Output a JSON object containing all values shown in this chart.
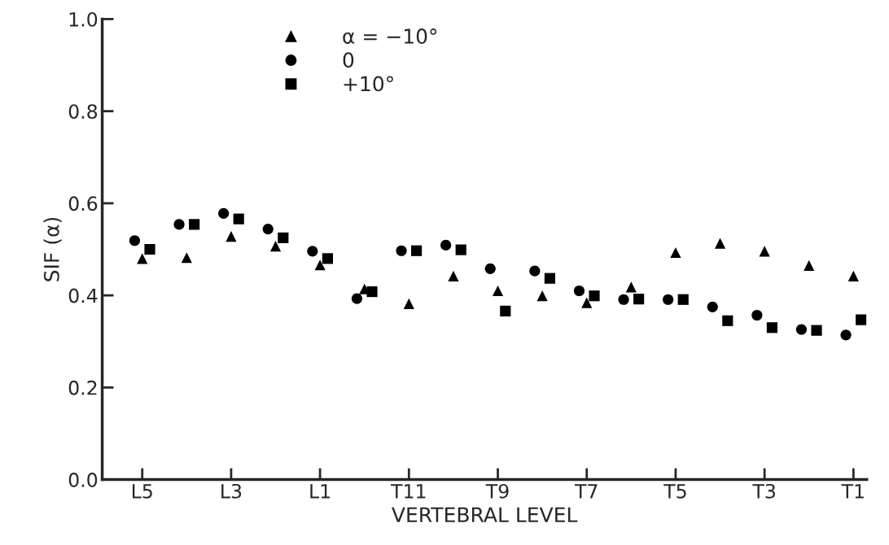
{
  "chart_data": {
    "type": "scatter",
    "xlabel": "VERTEBRAL LEVEL",
    "ylabel": "SIF (α)",
    "categories": [
      "L5",
      null,
      "L3",
      null,
      "L1",
      null,
      "T11",
      null,
      "T9",
      null,
      "T7",
      null,
      "T5",
      null,
      "T3",
      null,
      "T1"
    ],
    "series": [
      {
        "name": "α = −10°",
        "color": "#000000",
        "marker": "triangle",
        "values": [
          0.48,
          0.482,
          0.528,
          0.507,
          0.466,
          0.414,
          0.382,
          0.442,
          0.41,
          0.399,
          0.384,
          0.418,
          0.493,
          0.513,
          0.496,
          0.465,
          0.442
        ]
      },
      {
        "name": "0",
        "color": "#000000",
        "marker": "circle",
        "values": [
          0.519,
          0.554,
          0.578,
          0.544,
          0.496,
          0.393,
          0.497,
          0.509,
          0.458,
          0.453,
          0.41,
          0.391,
          0.391,
          0.375,
          0.357,
          0.326,
          0.314
        ]
      },
      {
        "name": "+10°",
        "color": "#000000",
        "marker": "square",
        "values": [
          0.5,
          0.554,
          0.566,
          0.525,
          0.48,
          0.408,
          0.497,
          0.499,
          0.366,
          0.437,
          0.399,
          0.392,
          0.391,
          0.345,
          0.33,
          0.324,
          0.347
        ]
      }
    ],
    "ylim": [
      0,
      1.0
    ],
    "yticks": [
      {
        "value": 0,
        "label": "0.0"
      },
      {
        "value": 0.2,
        "label": "0.2"
      },
      {
        "value": 0.4,
        "label": "0.4"
      },
      {
        "value": 0.6,
        "label": "0.6"
      },
      {
        "value": 0.8,
        "label": "0.8"
      },
      {
        "value": 1.0,
        "label": "1.0"
      }
    ],
    "legend": "top",
    "grid": false
  }
}
